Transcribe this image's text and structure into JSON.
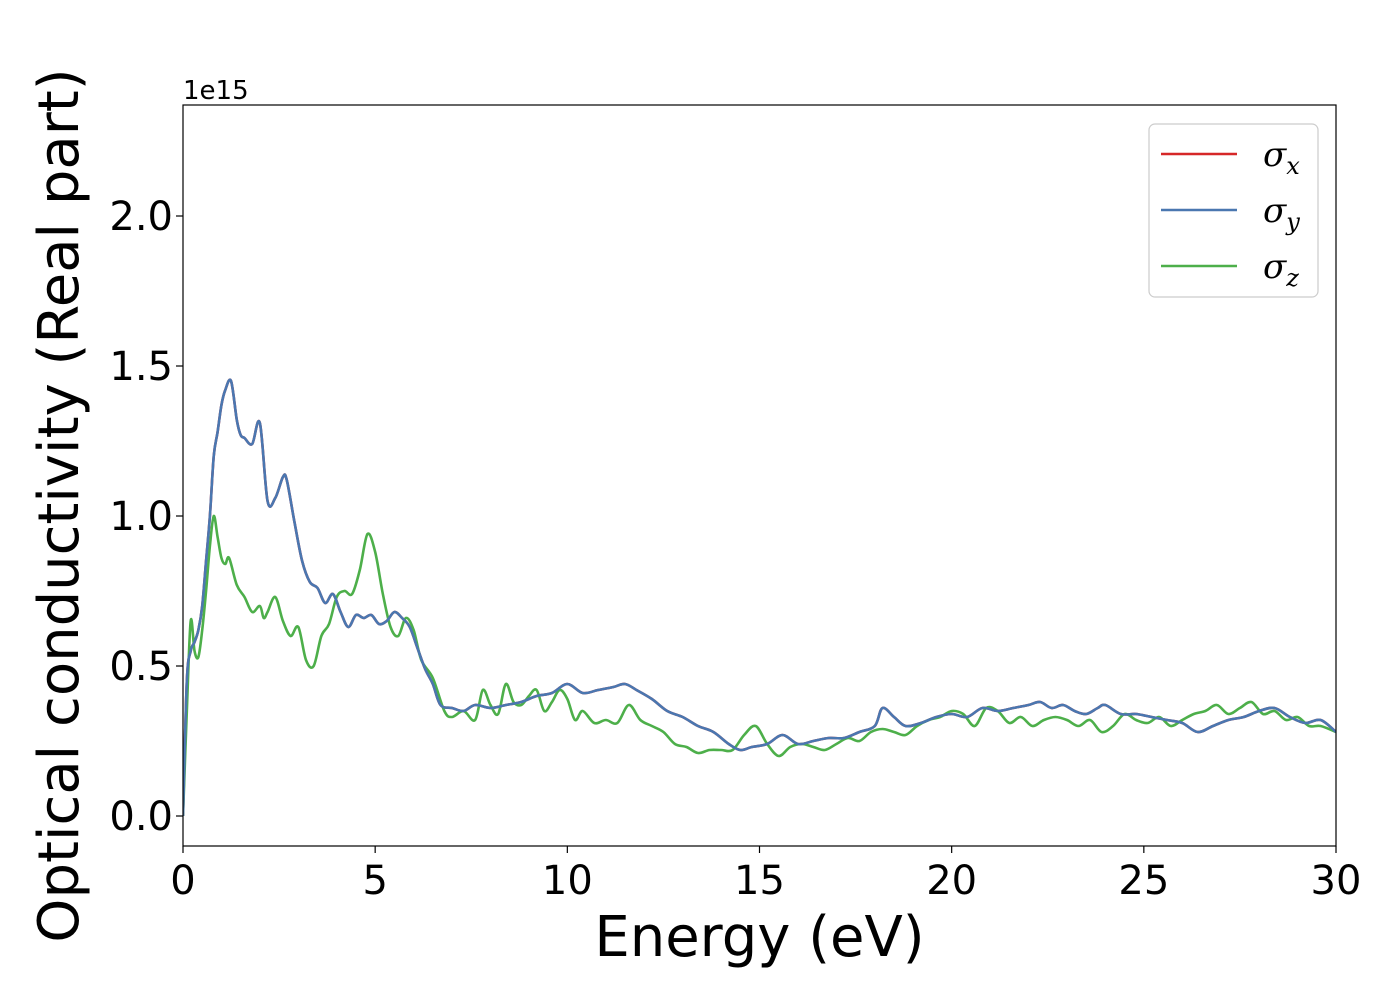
{
  "chart_data": {
    "type": "line",
    "title": "",
    "xlabel": "Energy (eV)",
    "ylabel": "Optical conductivity (Real part)",
    "y_offset_label": "1e15",
    "xlim": [
      0,
      30
    ],
    "ylim": [
      -0.1,
      2.37
    ],
    "xticks": [
      0,
      5,
      10,
      15,
      20,
      25,
      30
    ],
    "yticks": [
      0.0,
      0.5,
      1.0,
      1.5,
      2.0
    ],
    "xtick_labels": [
      "0",
      "5",
      "10",
      "15",
      "20",
      "25",
      "30"
    ],
    "ytick_labels": [
      "0.0",
      "0.5",
      "1.0",
      "1.5",
      "2.0"
    ],
    "grid": false,
    "legend_position": "top-right",
    "series": [
      {
        "name": "σx",
        "legend_symbol": "σ",
        "legend_subscript": "x",
        "color": "#d62728",
        "x": [
          0,
          0.1,
          0.2,
          0.3,
          0.4,
          0.5,
          0.6,
          0.7,
          0.8,
          0.9,
          1.0,
          1.1,
          1.25,
          1.4,
          1.5,
          1.6,
          1.8,
          2.0,
          2.2,
          2.4,
          2.6,
          2.7,
          2.9,
          3.1,
          3.3,
          3.5,
          3.7,
          3.9,
          4.1,
          4.3,
          4.5,
          4.7,
          4.9,
          5.1,
          5.3,
          5.5,
          5.7,
          5.9,
          6.1,
          6.3,
          6.5,
          6.7,
          7.0,
          7.3,
          7.6,
          8.0,
          8.4,
          8.8,
          9.2,
          9.6,
          10.0,
          10.4,
          10.8,
          11.2,
          11.5,
          11.8,
          12.2,
          12.6,
          13.0,
          13.4,
          13.8,
          14.2,
          14.5,
          14.8,
          15.2,
          15.6,
          16.0,
          16.4,
          16.8,
          17.2,
          17.6,
          18.0,
          18.2,
          18.5,
          18.8,
          19.2,
          19.6,
          20.0,
          20.4,
          20.8,
          21.2,
          21.6,
          22.0,
          22.3,
          22.6,
          22.9,
          23.2,
          23.5,
          23.8,
          24.0,
          24.4,
          24.8,
          25.2,
          25.6,
          26.0,
          26.4,
          26.8,
          27.2,
          27.6,
          28.0,
          28.4,
          28.8,
          29.2,
          29.6,
          30.0
        ],
        "values": [
          0.0,
          0.45,
          0.55,
          0.58,
          0.62,
          0.7,
          0.85,
          1.0,
          1.2,
          1.28,
          1.37,
          1.42,
          1.45,
          1.32,
          1.27,
          1.26,
          1.24,
          1.31,
          1.05,
          1.06,
          1.13,
          1.12,
          0.98,
          0.85,
          0.78,
          0.76,
          0.71,
          0.74,
          0.68,
          0.63,
          0.67,
          0.66,
          0.67,
          0.64,
          0.65,
          0.68,
          0.66,
          0.63,
          0.56,
          0.49,
          0.44,
          0.37,
          0.36,
          0.35,
          0.37,
          0.36,
          0.37,
          0.38,
          0.4,
          0.41,
          0.44,
          0.41,
          0.42,
          0.43,
          0.44,
          0.42,
          0.39,
          0.35,
          0.33,
          0.3,
          0.28,
          0.24,
          0.22,
          0.23,
          0.24,
          0.27,
          0.24,
          0.25,
          0.26,
          0.26,
          0.28,
          0.3,
          0.36,
          0.33,
          0.3,
          0.31,
          0.33,
          0.34,
          0.33,
          0.36,
          0.35,
          0.36,
          0.37,
          0.38,
          0.36,
          0.37,
          0.35,
          0.34,
          0.36,
          0.37,
          0.34,
          0.34,
          0.33,
          0.32,
          0.31,
          0.28,
          0.3,
          0.32,
          0.33,
          0.35,
          0.36,
          0.33,
          0.31,
          0.32,
          0.28
        ]
      },
      {
        "name": "σy",
        "legend_symbol": "σ",
        "legend_subscript": "y",
        "color": "#4a77b0",
        "x": [
          0,
          0.1,
          0.2,
          0.3,
          0.4,
          0.5,
          0.6,
          0.7,
          0.8,
          0.9,
          1.0,
          1.1,
          1.25,
          1.4,
          1.5,
          1.6,
          1.8,
          2.0,
          2.2,
          2.4,
          2.6,
          2.7,
          2.9,
          3.1,
          3.3,
          3.5,
          3.7,
          3.9,
          4.1,
          4.3,
          4.5,
          4.7,
          4.9,
          5.1,
          5.3,
          5.5,
          5.7,
          5.9,
          6.1,
          6.3,
          6.5,
          6.7,
          7.0,
          7.3,
          7.6,
          8.0,
          8.4,
          8.8,
          9.2,
          9.6,
          10.0,
          10.4,
          10.8,
          11.2,
          11.5,
          11.8,
          12.2,
          12.6,
          13.0,
          13.4,
          13.8,
          14.2,
          14.5,
          14.8,
          15.2,
          15.6,
          16.0,
          16.4,
          16.8,
          17.2,
          17.6,
          18.0,
          18.2,
          18.5,
          18.8,
          19.2,
          19.6,
          20.0,
          20.4,
          20.8,
          21.2,
          21.6,
          22.0,
          22.3,
          22.6,
          22.9,
          23.2,
          23.5,
          23.8,
          24.0,
          24.4,
          24.8,
          25.2,
          25.6,
          26.0,
          26.4,
          26.8,
          27.2,
          27.6,
          28.0,
          28.4,
          28.8,
          29.2,
          29.6,
          30.0
        ],
        "values": [
          0.0,
          0.45,
          0.55,
          0.58,
          0.62,
          0.7,
          0.85,
          1.0,
          1.2,
          1.28,
          1.37,
          1.42,
          1.45,
          1.32,
          1.27,
          1.26,
          1.24,
          1.31,
          1.05,
          1.06,
          1.13,
          1.12,
          0.98,
          0.85,
          0.78,
          0.76,
          0.71,
          0.74,
          0.68,
          0.63,
          0.67,
          0.66,
          0.67,
          0.64,
          0.65,
          0.68,
          0.66,
          0.63,
          0.56,
          0.49,
          0.44,
          0.37,
          0.36,
          0.35,
          0.37,
          0.36,
          0.37,
          0.38,
          0.4,
          0.41,
          0.44,
          0.41,
          0.42,
          0.43,
          0.44,
          0.42,
          0.39,
          0.35,
          0.33,
          0.3,
          0.28,
          0.24,
          0.22,
          0.23,
          0.24,
          0.27,
          0.24,
          0.25,
          0.26,
          0.26,
          0.28,
          0.3,
          0.36,
          0.33,
          0.3,
          0.31,
          0.33,
          0.34,
          0.33,
          0.36,
          0.35,
          0.36,
          0.37,
          0.38,
          0.36,
          0.37,
          0.35,
          0.34,
          0.36,
          0.37,
          0.34,
          0.34,
          0.33,
          0.32,
          0.31,
          0.28,
          0.3,
          0.32,
          0.33,
          0.35,
          0.36,
          0.33,
          0.31,
          0.32,
          0.28
        ]
      },
      {
        "name": "σz",
        "legend_symbol": "σ",
        "legend_subscript": "z",
        "color": "#4daf4a",
        "x": [
          0,
          0.1,
          0.2,
          0.3,
          0.4,
          0.5,
          0.6,
          0.7,
          0.8,
          0.9,
          1.0,
          1.1,
          1.2,
          1.4,
          1.6,
          1.8,
          2.0,
          2.1,
          2.2,
          2.4,
          2.6,
          2.8,
          3.0,
          3.2,
          3.4,
          3.6,
          3.8,
          4.0,
          4.2,
          4.4,
          4.6,
          4.8,
          5.0,
          5.2,
          5.4,
          5.6,
          5.8,
          6.0,
          6.2,
          6.5,
          6.8,
          7.0,
          7.3,
          7.6,
          7.8,
          8.0,
          8.2,
          8.4,
          8.6,
          8.8,
          9.0,
          9.2,
          9.4,
          9.6,
          9.8,
          10.0,
          10.2,
          10.4,
          10.7,
          11.0,
          11.3,
          11.6,
          11.9,
          12.2,
          12.5,
          12.8,
          13.1,
          13.4,
          13.7,
          14.0,
          14.3,
          14.6,
          14.9,
          15.2,
          15.5,
          15.8,
          16.1,
          16.4,
          16.7,
          17.0,
          17.3,
          17.6,
          17.9,
          18.2,
          18.5,
          18.8,
          19.1,
          19.4,
          19.7,
          20.0,
          20.3,
          20.6,
          20.9,
          21.2,
          21.5,
          21.8,
          22.1,
          22.4,
          22.7,
          23.0,
          23.3,
          23.6,
          23.9,
          24.2,
          24.5,
          24.8,
          25.1,
          25.4,
          25.7,
          26.0,
          26.3,
          26.6,
          26.9,
          27.2,
          27.5,
          27.8,
          28.1,
          28.4,
          28.7,
          29.0,
          29.3,
          29.6,
          30.0
        ],
        "values": [
          0.0,
          0.35,
          0.65,
          0.55,
          0.53,
          0.62,
          0.75,
          0.9,
          1.0,
          0.93,
          0.86,
          0.84,
          0.86,
          0.77,
          0.73,
          0.68,
          0.7,
          0.66,
          0.68,
          0.73,
          0.65,
          0.6,
          0.63,
          0.52,
          0.5,
          0.6,
          0.64,
          0.73,
          0.75,
          0.74,
          0.82,
          0.94,
          0.88,
          0.74,
          0.63,
          0.6,
          0.66,
          0.62,
          0.52,
          0.46,
          0.35,
          0.33,
          0.35,
          0.32,
          0.42,
          0.37,
          0.34,
          0.44,
          0.38,
          0.37,
          0.4,
          0.42,
          0.35,
          0.38,
          0.42,
          0.39,
          0.32,
          0.35,
          0.31,
          0.32,
          0.31,
          0.37,
          0.32,
          0.3,
          0.28,
          0.24,
          0.23,
          0.21,
          0.22,
          0.22,
          0.22,
          0.27,
          0.3,
          0.24,
          0.2,
          0.23,
          0.24,
          0.23,
          0.22,
          0.24,
          0.26,
          0.25,
          0.28,
          0.29,
          0.28,
          0.27,
          0.3,
          0.32,
          0.33,
          0.35,
          0.34,
          0.3,
          0.36,
          0.35,
          0.31,
          0.33,
          0.3,
          0.32,
          0.33,
          0.32,
          0.3,
          0.32,
          0.28,
          0.3,
          0.34,
          0.32,
          0.31,
          0.33,
          0.3,
          0.32,
          0.34,
          0.35,
          0.37,
          0.34,
          0.36,
          0.38,
          0.34,
          0.35,
          0.32,
          0.33,
          0.3,
          0.3,
          0.28
        ]
      }
    ]
  }
}
